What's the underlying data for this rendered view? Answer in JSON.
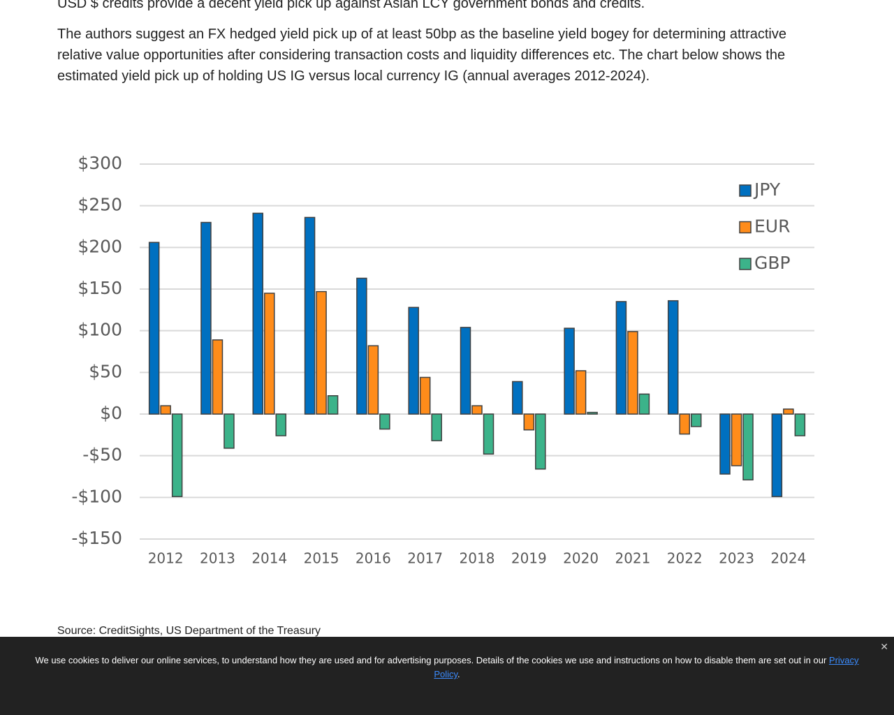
{
  "article": {
    "top_line": "USD $ credits provide a decent yield pick up against Asian LCY government bonds and credits.",
    "paragraph": "The authors suggest an FX hedged yield pick up of at least 50bp as the baseline yield bogey for determining attractive relative value opportunities after considering transaction costs and liquidity differences etc. The chart below shows the estimated yield pick up of holding US IG versus local currency IG (annual averages 2012-2024).",
    "source": "Source: CreditSights, US Department of the Treasury"
  },
  "chart_data": {
    "type": "bar",
    "categories": [
      "2012",
      "2013",
      "2014",
      "2015",
      "2016",
      "2017",
      "2018",
      "2019",
      "2020",
      "2021",
      "2022",
      "2023",
      "2024"
    ],
    "series": [
      {
        "name": "JPY",
        "color": "#0070c0",
        "values": [
          206,
          230,
          241,
          236,
          163,
          128,
          104,
          39,
          103,
          135,
          136,
          -72,
          -99
        ]
      },
      {
        "name": "EUR",
        "color": "#ff8c1a",
        "values": [
          10,
          89,
          145,
          147,
          82,
          44,
          10,
          -19,
          52,
          99,
          -24,
          -62,
          6
        ]
      },
      {
        "name": "GBP",
        "color": "#3cb38a",
        "values": [
          -99,
          -41,
          -26,
          22,
          -18,
          -32,
          -48,
          -66,
          2,
          24,
          -15,
          -79,
          -26
        ]
      }
    ],
    "ylim": [
      -150,
      300
    ],
    "yticks": [
      {
        "value": -150,
        "label": "-$150"
      },
      {
        "value": -100,
        "label": "-$100"
      },
      {
        "value": -50,
        "label": "-$50"
      },
      {
        "value": 0,
        "label": "$0"
      },
      {
        "value": 50,
        "label": "$50"
      },
      {
        "value": 100,
        "label": "$100"
      },
      {
        "value": 150,
        "label": "$150"
      },
      {
        "value": 200,
        "label": "$200"
      },
      {
        "value": 250,
        "label": "$250"
      },
      {
        "value": 300,
        "label": "$300"
      }
    ],
    "grid": true,
    "legend": "top-right"
  },
  "cookie_banner": {
    "text": "We use cookies to deliver our online services, to understand how they are used and for advertising purposes. Details of the cookies we use and instructions on how to disable them are set out in our ",
    "link": "Privacy Policy",
    "suffix": ".",
    "close": "✕"
  }
}
